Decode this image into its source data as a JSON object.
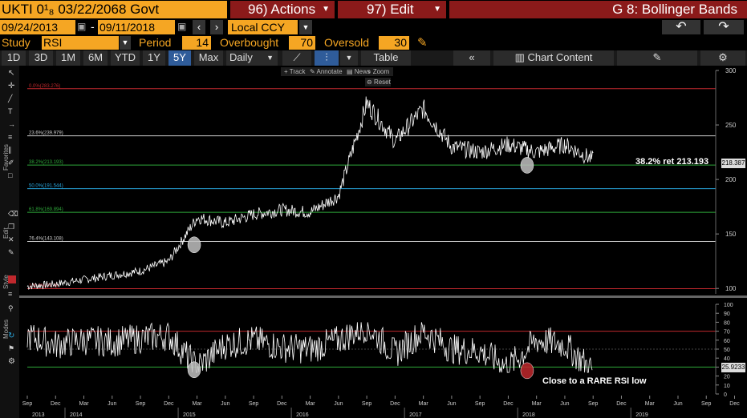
{
  "header": {
    "security": "UKTI 0¹₈ 03/22/2068 Govt",
    "actions": "96) Actions",
    "edit": "97) Edit",
    "function": "G 8: Bollinger Bands"
  },
  "dates": {
    "start": "09/24/2013",
    "end": "09/11/2018",
    "currency": "Local CCY"
  },
  "study": {
    "label": "Study",
    "value": "RSI",
    "period_label": "Period",
    "period": "14",
    "overbought_label": "Overbought",
    "overbought": "70",
    "oversold_label": "Oversold",
    "oversold": "30"
  },
  "toolbar": {
    "periods": [
      "1D",
      "3D",
      "1M",
      "6M",
      "YTD",
      "1Y",
      "5Y",
      "Max"
    ],
    "selected": "5Y",
    "frequency": "Daily",
    "table": "Table",
    "chart_content": "Chart Content"
  },
  "subtoolbar": {
    "track": "Track",
    "annotate": "Annotate",
    "news": "News",
    "zoom": "Zoom",
    "reset": "Reset"
  },
  "sidebar": {
    "favorites": "Favorites",
    "edit": "Edit",
    "style": "Style",
    "modes": "Modes"
  },
  "colors": {
    "accent": "#f5a623",
    "fib_red": "#c0282d",
    "fib_green": "#2ea83a",
    "fib_cyan": "#29a8e0",
    "fib_white": "#cfcfcf",
    "marker_grey": "#bfbfbf",
    "marker_red": "#c0282d"
  },
  "annotations": {
    "ret": "38.2% ret 213.193",
    "rsi_note": "Close to a RARE RSI low",
    "last_price": "218.387",
    "last_rsi": "25.9233"
  },
  "chart_data": [
    {
      "type": "line",
      "title": "",
      "series": [
        {
          "values_note": "",
          "x": [
            "2013-09",
            "2013-12",
            "2014-03",
            "2014-06",
            "2014-09",
            "2014-12",
            "2015-03",
            "2015-06",
            "2015-09",
            "2015-12",
            "2016-03",
            "2016-06",
            "2016-09",
            "2016-12",
            "2017-03",
            "2017-06",
            "2017-09",
            "2017-12",
            "2018-03",
            "2018-06",
            "2018-09"
          ],
          "y": [
            102,
            104,
            108,
            112,
            116,
            125,
            165,
            160,
            168,
            172,
            170,
            185,
            270,
            235,
            265,
            230,
            225,
            232,
            225,
            232,
            218
          ]
        }
      ],
      "ylim": [
        95,
        300
      ],
      "yticks": [
        100,
        150,
        200,
        250,
        300
      ],
      "fib_levels": [
        {
          "label": "0.0%(283.276)",
          "value": 283.276,
          "color": "red"
        },
        {
          "label": "23.6%(239.979)",
          "value": 239.979,
          "color": "white"
        },
        {
          "label": "38.2%(213.193)",
          "value": 213.193,
          "color": "green"
        },
        {
          "label": "50.0%(191.544)",
          "value": 191.544,
          "color": "cyan"
        },
        {
          "label": "61.8%(169.894)",
          "value": 169.894,
          "color": "green"
        },
        {
          "label": "76.4%(143.108)",
          "value": 143.108,
          "color": "white"
        },
        {
          "label": "100.0%(99.8)",
          "value": 99.8,
          "color": "red"
        }
      ]
    },
    {
      "type": "line",
      "title": "RSI",
      "series": [
        {
          "x": [
            "2013-09",
            "2013-12",
            "2014-03",
            "2014-06",
            "2014-09",
            "2014-12",
            "2015-03",
            "2015-06",
            "2015-09",
            "2015-12",
            "2016-03",
            "2016-06",
            "2016-09",
            "2016-12",
            "2017-03",
            "2017-06",
            "2017-09",
            "2017-12",
            "2018-03",
            "2018-06",
            "2018-09"
          ],
          "y": [
            65,
            55,
            60,
            58,
            62,
            65,
            30,
            55,
            60,
            52,
            50,
            60,
            75,
            45,
            70,
            50,
            48,
            30,
            60,
            55,
            26
          ]
        }
      ],
      "ylim": [
        0,
        100
      ],
      "yticks": [
        0,
        10,
        20,
        30,
        40,
        50,
        60,
        70,
        80,
        90,
        100
      ],
      "overbought": 70,
      "oversold": 30,
      "xaxis_months": [
        "Sep",
        "Dec",
        "Mar",
        "Jun",
        "Sep",
        "Dec",
        "Mar",
        "Jun",
        "Sep",
        "Dec",
        "Mar",
        "Jun",
        "Sep",
        "Dec",
        "Mar",
        "Jun",
        "Sep",
        "Dec",
        "Mar",
        "Jun",
        "Sep",
        "Dec",
        "Mar",
        "Jun",
        "Sep",
        "Dec",
        "Mar",
        "Jun"
      ],
      "xaxis_years": [
        "2013",
        "2014",
        "2015",
        "2016",
        "2017",
        "2018",
        "2019"
      ]
    }
  ]
}
